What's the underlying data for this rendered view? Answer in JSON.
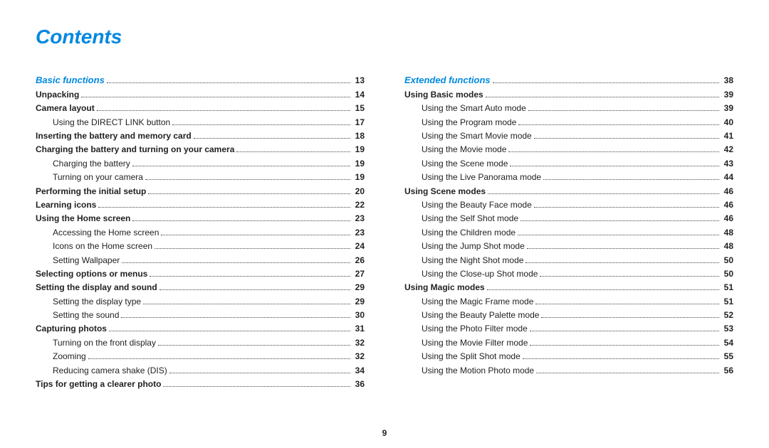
{
  "title": "Contents",
  "page_number": "9",
  "style": {
    "accent_color": "#0088e0",
    "text_color": "#222222",
    "background_color": "#ffffff",
    "title_fontsize": 28,
    "row_fontsize": 12,
    "leader_style": "dotted",
    "leader_color": "#444444"
  },
  "columns": [
    {
      "section": {
        "label": "Basic functions",
        "page": "13"
      },
      "items": [
        {
          "label": "Unpacking",
          "page": "14",
          "type": "bold"
        },
        {
          "label": "Camera layout",
          "page": "15",
          "type": "bold"
        },
        {
          "label": "Using the DIRECT LINK button",
          "page": "17",
          "type": "sub"
        },
        {
          "label": "Inserting the battery and memory card",
          "page": "18",
          "type": "bold"
        },
        {
          "label": "Charging the battery and turning on your camera",
          "page": "19",
          "type": "bold"
        },
        {
          "label": "Charging the battery",
          "page": "19",
          "type": "sub"
        },
        {
          "label": "Turning on your camera",
          "page": "19",
          "type": "sub"
        },
        {
          "label": "Performing the initial setup",
          "page": "20",
          "type": "bold"
        },
        {
          "label": "Learning icons",
          "page": "22",
          "type": "bold"
        },
        {
          "label": "Using the Home screen",
          "page": "23",
          "type": "bold"
        },
        {
          "label": "Accessing the Home screen",
          "page": "23",
          "type": "sub"
        },
        {
          "label": "Icons on the Home screen",
          "page": "24",
          "type": "sub"
        },
        {
          "label": "Setting Wallpaper",
          "page": "26",
          "type": "sub"
        },
        {
          "label": "Selecting options or menus",
          "page": "27",
          "type": "bold"
        },
        {
          "label": "Setting the display and sound",
          "page": "29",
          "type": "bold"
        },
        {
          "label": "Setting the display type",
          "page": "29",
          "type": "sub"
        },
        {
          "label": "Setting the sound",
          "page": "30",
          "type": "sub"
        },
        {
          "label": "Capturing photos",
          "page": "31",
          "type": "bold"
        },
        {
          "label": "Turning on the front display",
          "page": "32",
          "type": "sub"
        },
        {
          "label": "Zooming",
          "page": "32",
          "type": "sub"
        },
        {
          "label": "Reducing camera shake (DIS)",
          "page": "34",
          "type": "sub"
        },
        {
          "label": "Tips for getting a clearer photo",
          "page": "36",
          "type": "bold"
        }
      ]
    },
    {
      "section": {
        "label": "Extended functions",
        "page": "38"
      },
      "items": [
        {
          "label": "Using Basic modes",
          "page": "39",
          "type": "bold"
        },
        {
          "label": "Using the Smart Auto mode",
          "page": "39",
          "type": "sub"
        },
        {
          "label": "Using the Program mode",
          "page": "40",
          "type": "sub"
        },
        {
          "label": "Using the Smart Movie mode",
          "page": "41",
          "type": "sub"
        },
        {
          "label": "Using the Movie mode",
          "page": "42",
          "type": "sub"
        },
        {
          "label": "Using the Scene mode",
          "page": "43",
          "type": "sub"
        },
        {
          "label": "Using the Live Panorama mode",
          "page": "44",
          "type": "sub"
        },
        {
          "label": "Using Scene modes",
          "page": "46",
          "type": "bold"
        },
        {
          "label": "Using the Beauty Face mode",
          "page": "46",
          "type": "sub"
        },
        {
          "label": "Using the Self Shot mode",
          "page": "46",
          "type": "sub"
        },
        {
          "label": "Using the Children mode",
          "page": "48",
          "type": "sub"
        },
        {
          "label": "Using the Jump Shot mode",
          "page": "48",
          "type": "sub"
        },
        {
          "label": "Using the Night Shot mode",
          "page": "50",
          "type": "sub"
        },
        {
          "label": "Using the Close-up Shot mode",
          "page": "50",
          "type": "sub"
        },
        {
          "label": "Using Magic modes",
          "page": "51",
          "type": "bold"
        },
        {
          "label": "Using the Magic Frame mode",
          "page": "51",
          "type": "sub"
        },
        {
          "label": "Using the Beauty Palette mode",
          "page": "52",
          "type": "sub"
        },
        {
          "label": "Using the Photo Filter mode",
          "page": "53",
          "type": "sub"
        },
        {
          "label": "Using the Movie Filter mode",
          "page": "54",
          "type": "sub"
        },
        {
          "label": "Using the Split Shot mode",
          "page": "55",
          "type": "sub"
        },
        {
          "label": "Using the Motion Photo mode",
          "page": "56",
          "type": "sub"
        }
      ]
    }
  ]
}
